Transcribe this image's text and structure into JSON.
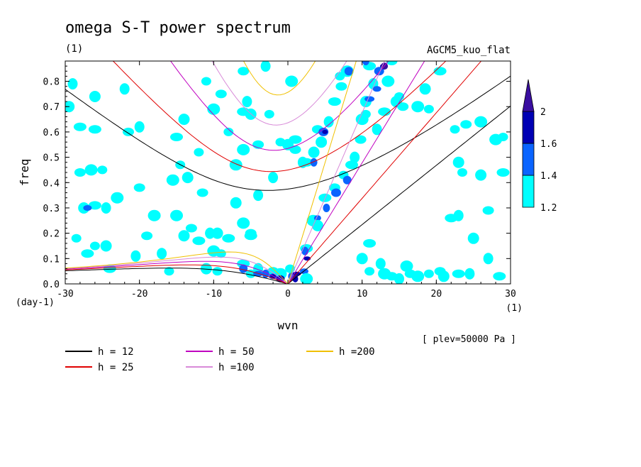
{
  "chart_data": {
    "type": "contour",
    "title": "omega S-T power spectrum",
    "subtitle": "(1)",
    "model_label": "AGCM5_kuo_flat",
    "xlabel": "wvn",
    "ylabel": "freq",
    "x_unit": "(1)",
    "y_unit": "(day-1)",
    "level_note": "[ plev=50000 Pa ]",
    "xlim": [
      -30,
      30
    ],
    "ylim": [
      0,
      0.88
    ],
    "x_ticks": [
      "-30",
      "-20",
      "-10",
      "0",
      "10",
      "20",
      "30"
    ],
    "y_ticks": [
      "0.0",
      "0.1",
      "0.2",
      "0.3",
      "0.4",
      "0.5",
      "0.6",
      "0.7",
      "0.8"
    ],
    "colorbar": {
      "levels": [
        "1.2",
        "1.4",
        "1.6",
        "2"
      ],
      "colors": [
        "#00ffff",
        "#0a64ff",
        "#0000b4",
        "#3a0ea0"
      ]
    },
    "dispersion_curves": [
      {
        "label": "h = 12",
        "color": "#000000",
        "h": 12
      },
      {
        "label": "h = 25",
        "color": "#e00000",
        "h": 25
      },
      {
        "label": "h = 50",
        "color": "#c000c0",
        "h": 50
      },
      {
        "label": "h =100",
        "color": "#d88ad8",
        "h": 100
      },
      {
        "label": "h =200",
        "color": "#f0c000",
        "h": 200
      }
    ],
    "blobs": [
      [
        -28.5,
        0.18,
        "#00ffff"
      ],
      [
        -26,
        0.74,
        "#00ffff"
      ],
      [
        -24,
        0.06,
        "#00ffff"
      ],
      [
        -22,
        0.77,
        "#00ffff"
      ],
      [
        -28,
        0.44,
        "#00ffff"
      ],
      [
        -26.5,
        0.45,
        "#00ffff"
      ],
      [
        -25,
        0.45,
        "#00ffff"
      ],
      [
        -27.5,
        0.3,
        "#00ffff"
      ],
      [
        -26,
        0.31,
        "#00ffff"
      ],
      [
        -24.5,
        0.3,
        "#00ffff"
      ],
      [
        -27,
        0.3,
        "#0a64ff"
      ],
      [
        -23,
        0.34,
        "#00ffff"
      ],
      [
        -26,
        0.15,
        "#00ffff"
      ],
      [
        -24.5,
        0.15,
        "#00ffff"
      ],
      [
        -27,
        0.12,
        "#00ffff"
      ],
      [
        -20.5,
        0.11,
        "#00ffff"
      ],
      [
        -19,
        0.19,
        "#00ffff"
      ],
      [
        -18,
        0.27,
        "#00ffff"
      ],
      [
        -16,
        0.05,
        "#00ffff"
      ],
      [
        -14,
        0.19,
        "#00ffff"
      ],
      [
        -12,
        0.17,
        "#00ffff"
      ],
      [
        -10.5,
        0.2,
        "#00ffff"
      ],
      [
        -13,
        0.22,
        "#00ffff"
      ],
      [
        -10,
        0.13,
        "#00ffff"
      ],
      [
        -9,
        0.12,
        "#00ffff"
      ],
      [
        -9.5,
        0.2,
        "#00ffff"
      ],
      [
        -8,
        0.18,
        "#00ffff"
      ],
      [
        -17,
        0.12,
        "#00ffff"
      ],
      [
        -11.5,
        0.36,
        "#00ffff"
      ],
      [
        -15.5,
        0.41,
        "#00ffff"
      ],
      [
        -14.5,
        0.47,
        "#00ffff"
      ],
      [
        -13.5,
        0.42,
        "#00ffff"
      ],
      [
        -15,
        0.58,
        "#00ffff"
      ],
      [
        -20,
        0.62,
        "#00ffff"
      ],
      [
        -21.5,
        0.6,
        "#00ffff"
      ],
      [
        -6,
        0.53,
        "#00ffff"
      ],
      [
        -8,
        0.6,
        "#00ffff"
      ],
      [
        -7,
        0.32,
        "#00ffff"
      ],
      [
        -5,
        0.19,
        "#00ffff"
      ],
      [
        -4,
        0.35,
        "#00ffff"
      ],
      [
        -9,
        0.75,
        "#00ffff"
      ],
      [
        -10,
        0.69,
        "#00ffff"
      ],
      [
        -11,
        0.8,
        "#00ffff"
      ],
      [
        -14,
        0.65,
        "#00ffff"
      ],
      [
        -6,
        0.08,
        "#00ffff"
      ],
      [
        -4,
        0.06,
        "#00ffff"
      ],
      [
        -2,
        0.05,
        "#00ffff"
      ],
      [
        -1,
        0.04,
        "#00ffff"
      ],
      [
        -5,
        0.04,
        "#00ffff"
      ],
      [
        -6,
        0.06,
        "#0a64ff"
      ],
      [
        -4,
        0.04,
        "#0a64ff"
      ],
      [
        -3,
        0.04,
        "#0a64ff"
      ],
      [
        -2,
        0.03,
        "#0a64ff"
      ],
      [
        -1,
        0.02,
        "#0000b4"
      ],
      [
        -2,
        0.03,
        "#0000b4"
      ],
      [
        0.6,
        0.03,
        "#0a64ff"
      ],
      [
        1.2,
        0.04,
        "#0000b4"
      ],
      [
        1,
        0.02,
        "#0000b4"
      ],
      [
        2.2,
        0.05,
        "#0a64ff"
      ],
      [
        2.5,
        0.02,
        "#00ffff"
      ],
      [
        0.3,
        0.06,
        "#00ffff"
      ],
      [
        -5,
        0.67,
        "#00ffff"
      ],
      [
        -6,
        0.68,
        "#00ffff"
      ],
      [
        -5.5,
        0.72,
        "#00ffff"
      ],
      [
        -4,
        0.55,
        "#00ffff"
      ],
      [
        -7,
        0.47,
        "#00ffff"
      ],
      [
        -1,
        0.56,
        "#00ffff"
      ],
      [
        0,
        0.55,
        "#00ffff"
      ],
      [
        1,
        0.57,
        "#00ffff"
      ],
      [
        2,
        0.48,
        "#00ffff"
      ],
      [
        1,
        0.53,
        "#00ffff"
      ],
      [
        0.5,
        0.8,
        "#00ffff"
      ],
      [
        -2.5,
        0.67,
        "#00ffff"
      ],
      [
        3.5,
        0.52,
        "#00ffff"
      ],
      [
        2.5,
        0.48,
        "#00ffff"
      ],
      [
        3.5,
        0.48,
        "#0a64ff"
      ],
      [
        4,
        0.61,
        "#00ffff"
      ],
      [
        4.8,
        0.6,
        "#0a64ff"
      ],
      [
        5,
        0.6,
        "#0000b4"
      ],
      [
        4.5,
        0.56,
        "#00ffff"
      ],
      [
        6.3,
        0.72,
        "#00ffff"
      ],
      [
        5.5,
        0.64,
        "#00ffff"
      ],
      [
        7.2,
        0.78,
        "#00ffff"
      ],
      [
        8,
        0.84,
        "#00ffff"
      ],
      [
        7,
        0.82,
        "#00ffff"
      ],
      [
        8.2,
        0.84,
        "#0a64ff"
      ],
      [
        2.5,
        0.14,
        "#00ffff"
      ],
      [
        2.3,
        0.13,
        "#0a64ff"
      ],
      [
        2.6,
        0.1,
        "#0000b4"
      ],
      [
        3.4,
        0.25,
        "#00ffff"
      ],
      [
        4,
        0.26,
        "#0a64ff"
      ],
      [
        4,
        0.23,
        "#00ffff"
      ],
      [
        5,
        0.34,
        "#00ffff"
      ],
      [
        5.2,
        0.3,
        "#0a64ff"
      ],
      [
        6.3,
        0.38,
        "#00ffff"
      ],
      [
        6.5,
        0.36,
        "#0a64ff"
      ],
      [
        7.5,
        0.43,
        "#00ffff"
      ],
      [
        8,
        0.41,
        "#0a64ff"
      ],
      [
        8.6,
        0.47,
        "#00ffff"
      ],
      [
        9,
        0.5,
        "#00ffff"
      ],
      [
        9.8,
        0.57,
        "#00ffff"
      ],
      [
        10,
        0.65,
        "#00ffff"
      ],
      [
        10.5,
        0.67,
        "#00ffff"
      ],
      [
        10.5,
        0.72,
        "#00ffff"
      ],
      [
        11,
        0.73,
        "#0a64ff"
      ],
      [
        11.5,
        0.79,
        "#00ffff"
      ],
      [
        12,
        0.77,
        "#0a64ff"
      ],
      [
        12.3,
        0.84,
        "#0a64ff"
      ],
      [
        12.8,
        0.86,
        "#0000b4"
      ],
      [
        13,
        0.86,
        "#3a0ea0"
      ],
      [
        11,
        0.86,
        "#00ffff"
      ],
      [
        10.5,
        0.88,
        "#0a64ff"
      ],
      [
        14,
        0.88,
        "#00ffff"
      ],
      [
        13.5,
        0.8,
        "#00ffff"
      ],
      [
        15,
        0.74,
        "#00ffff"
      ],
      [
        14.6,
        0.72,
        "#00ffff"
      ],
      [
        13,
        0.68,
        "#00ffff"
      ],
      [
        12,
        0.61,
        "#00ffff"
      ],
      [
        15.5,
        0.7,
        "#00ffff"
      ],
      [
        17.5,
        0.7,
        "#00ffff"
      ],
      [
        19,
        0.69,
        "#00ffff"
      ],
      [
        18.5,
        0.77,
        "#00ffff"
      ],
      [
        20.5,
        0.84,
        "#00ffff"
      ],
      [
        15,
        0.02,
        "#00ffff"
      ],
      [
        16.5,
        0.04,
        "#00ffff"
      ],
      [
        17.5,
        0.03,
        "#00ffff"
      ],
      [
        19,
        0.04,
        "#00ffff"
      ],
      [
        21,
        0.03,
        "#00ffff"
      ],
      [
        23,
        0.04,
        "#00ffff"
      ],
      [
        24.5,
        0.04,
        "#00ffff"
      ],
      [
        20.5,
        0.05,
        "#00ffff"
      ],
      [
        13,
        0.04,
        "#00ffff"
      ],
      [
        11,
        0.05,
        "#00ffff"
      ],
      [
        10,
        0.1,
        "#00ffff"
      ],
      [
        11,
        0.16,
        "#00ffff"
      ],
      [
        12.5,
        0.08,
        "#00ffff"
      ],
      [
        14,
        0.03,
        "#00ffff"
      ],
      [
        16,
        0.07,
        "#00ffff"
      ],
      [
        23.5,
        0.44,
        "#00ffff"
      ],
      [
        23,
        0.48,
        "#00ffff"
      ],
      [
        22,
        0.26,
        "#00ffff"
      ],
      [
        23,
        0.27,
        "#00ffff"
      ],
      [
        27,
        0.29,
        "#00ffff"
      ],
      [
        28,
        0.57,
        "#00ffff"
      ],
      [
        29,
        0.58,
        "#00ffff"
      ],
      [
        25,
        0.18,
        "#00ffff"
      ],
      [
        28.5,
        0.03,
        "#00ffff"
      ],
      [
        27,
        0.1,
        "#00ffff"
      ],
      [
        24,
        0.63,
        "#00ffff"
      ],
      [
        26,
        0.64,
        "#00ffff"
      ],
      [
        22.5,
        0.61,
        "#00ffff"
      ],
      [
        -29.5,
        0.7,
        "#00ffff"
      ],
      [
        -28,
        0.62,
        "#00ffff"
      ],
      [
        -2,
        0.42,
        "#00ffff"
      ],
      [
        -20,
        0.38,
        "#00ffff"
      ],
      [
        -15,
        0.27,
        "#00ffff"
      ],
      [
        -9.5,
        0.05,
        "#00ffff"
      ],
      [
        -11,
        0.06,
        "#00ffff"
      ],
      [
        -26,
        0.61,
        "#00ffff"
      ],
      [
        -29,
        0.79,
        "#00ffff"
      ],
      [
        -5,
        0.2,
        "#00ffff"
      ],
      [
        -6,
        0.24,
        "#00ffff"
      ],
      [
        -12,
        0.52,
        "#00ffff"
      ],
      [
        26,
        0.43,
        "#00ffff"
      ],
      [
        29,
        0.44,
        "#00ffff"
      ],
      [
        -3,
        0.86,
        "#00ffff"
      ],
      [
        -6,
        0.84,
        "#00ffff"
      ]
    ]
  }
}
